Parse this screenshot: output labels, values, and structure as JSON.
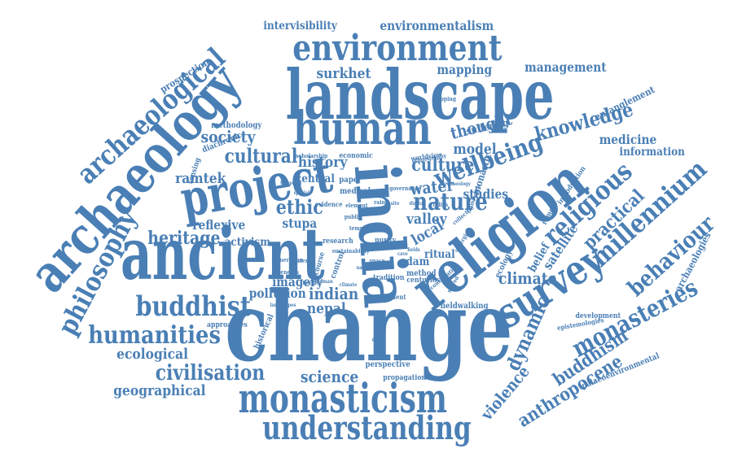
{
  "word_color": "#4a7fb5",
  "background": "#ffffff",
  "words": [
    "change",
    "ancient",
    "landscape",
    "religion",
    "archaeology",
    "india",
    "project",
    "human",
    "survey",
    "environment",
    "monasticism",
    "understanding",
    "buddhist",
    "archaeological",
    "humanities",
    "monasteries",
    "religious",
    "millennium",
    "wellbeing",
    "knowledge",
    "heritage",
    "philosophy",
    "nature",
    "civilisation",
    "dynamic",
    "behaviour",
    "culture",
    "cultural",
    "ethic",
    "buddhism",
    "anthropocene",
    "violence",
    "practical",
    "climate",
    "society",
    "history",
    "environmentalism",
    "mapping",
    "management",
    "thought",
    "ramtek",
    "model",
    "water",
    "science",
    "indian",
    "nepal",
    "valley",
    "studies",
    "stupa",
    "local",
    "geographical",
    "ecological",
    "imagery",
    "pollution",
    "reflexive",
    "surkhet",
    "intervisibility",
    "medicine",
    "information",
    "satellite",
    "belief",
    "archaeologies",
    "activism",
    "prospection",
    "entanglement",
    "suffering",
    "methodology",
    "diachronic",
    "central",
    "economic",
    "sensing",
    "worldview",
    "ritual",
    "dam",
    "method",
    "fieldwalking",
    "development",
    "epistemologies",
    "palaeoenvironmental",
    "perspective",
    "propagation",
    "monastic",
    "approaches",
    "ecology",
    "historical",
    "system",
    "centuries",
    "tradition",
    "purity",
    "research",
    "paper",
    "medical",
    "introduction",
    "remote",
    "control",
    "discourse",
    "engagement",
    "evidence",
    "context",
    "scholarship",
    "public",
    "element",
    "mapping",
    "ethnography",
    "sacred",
    "relics",
    "temple",
    "veneration",
    "space",
    "conservation",
    "benefits",
    "governance",
    "framework",
    "collective",
    "synergies",
    "sustainability",
    "rain",
    "fields",
    "cave",
    "landscapes",
    "archaeology",
    "climate",
    "human",
    "nature",
    "health",
    "site",
    "digital",
    "spatial",
    "temporal",
    "recording"
  ]
}
